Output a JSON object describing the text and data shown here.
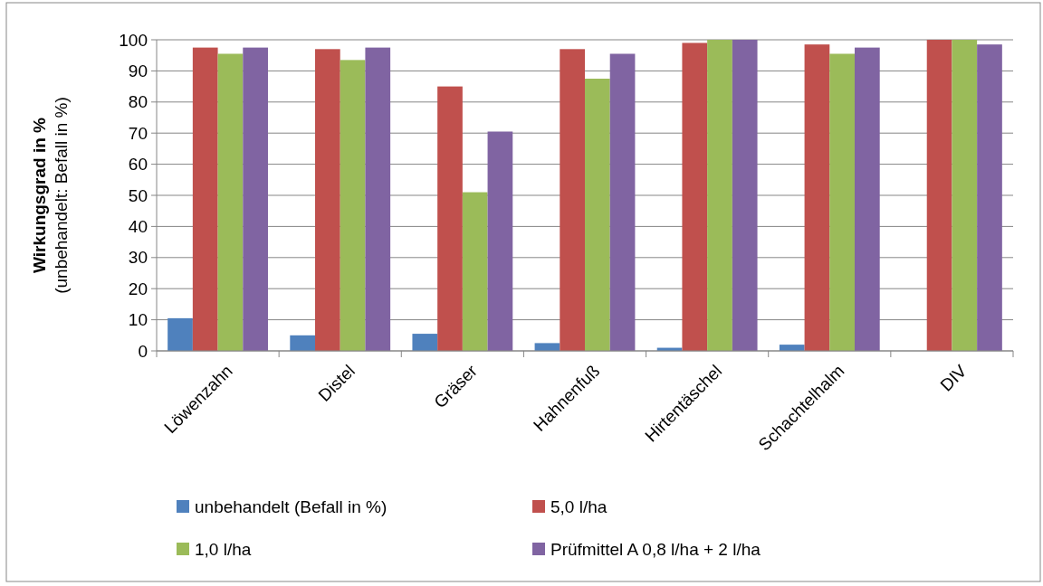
{
  "chart_data": {
    "type": "bar",
    "ylabel": "Wirkungsgrad in %\n(unbehandelt: Befall in %)",
    "categories": [
      "Löwenzahn",
      "Distel",
      "Gräser",
      "Hahnenfuß",
      "Hirtentäschel",
      "Schachtelhalm",
      "DIV"
    ],
    "series": [
      {
        "name": "unbehandelt (Befall in %)",
        "color": "#4f81bd",
        "values": [
          10.5,
          5,
          5.5,
          2.5,
          1,
          2,
          0
        ]
      },
      {
        "name": "5,0 l/ha",
        "color": "#c0504d",
        "values": [
          97.5,
          97,
          85,
          97,
          99,
          98.5,
          100
        ]
      },
      {
        "name": "1,0 l/ha",
        "color": "#9bbb59",
        "values": [
          95.5,
          93.5,
          51,
          87.5,
          100,
          95.5,
          100
        ]
      },
      {
        "name": "Prüfmittel A 0,8 l/ha + 2 l/ha",
        "color": "#8064a2",
        "values": [
          97.5,
          97.5,
          70.5,
          95.5,
          100,
          97.5,
          98.5
        ]
      }
    ],
    "ylim": [
      0,
      100
    ],
    "yticks": [
      0,
      10,
      20,
      30,
      40,
      50,
      60,
      70,
      80,
      90,
      100
    ],
    "grid": "y",
    "legend": "bottom"
  }
}
